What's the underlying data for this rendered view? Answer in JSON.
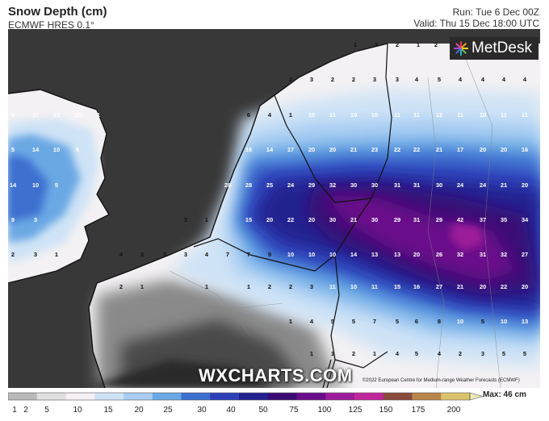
{
  "header": {
    "title": "Snow Depth (cm)",
    "model": "ECMWF HRES 0.1°",
    "run": "Run: Tue 6 Dec 00Z",
    "valid": "Valid: Thu 15 Dec 18:00 UTC"
  },
  "branding": {
    "logo_text": "MetDesk",
    "watermark": "WXCHARTS.COM",
    "copyright": "©2022 European Centre for Medium-range Weather Forecasts (ECMWF)"
  },
  "legend": {
    "max_label": "Max: 46 cm",
    "ticks": [
      "1",
      "2",
      "5",
      "10",
      "15",
      "20",
      "25",
      "30",
      "40",
      "50",
      "75",
      "100",
      "125",
      "150",
      "175",
      "200"
    ],
    "colors": [
      "#b9b9b9",
      "#dfdfdf",
      "#f4f0f4",
      "#cfe3f6",
      "#a9cdf2",
      "#6aa8e4",
      "#3c6fcf",
      "#2d3fb8",
      "#23208f",
      "#3a0a74",
      "#6a0d8a",
      "#9d1c9a",
      "#c0269c",
      "#8a4a3c",
      "#b8864a",
      "#d9c36a"
    ]
  },
  "map": {
    "labels": [
      [
        "1",
        "440",
        "58"
      ],
      [
        "3",
        "466",
        "58"
      ],
      [
        "2",
        "492",
        "58"
      ],
      [
        "1",
        "518",
        "58"
      ],
      [
        "2",
        "540",
        "58"
      ],
      [
        "2",
        "360",
        "101"
      ],
      [
        "3",
        "386",
        "101"
      ],
      [
        "2",
        "412",
        "101"
      ],
      [
        "2",
        "438",
        "101"
      ],
      [
        "3",
        "464",
        "101"
      ],
      [
        "3",
        "492",
        "101"
      ],
      [
        "4",
        "516",
        "101"
      ],
      [
        "5",
        "544",
        "101"
      ],
      [
        "4",
        "570",
        "101"
      ],
      [
        "4",
        "598",
        "101"
      ],
      [
        "4",
        "624",
        "101"
      ],
      [
        "4",
        "650",
        "101"
      ],
      [
        "9",
        "16",
        "145"
      ],
      [
        "11",
        "44",
        "145"
      ],
      [
        "13",
        "70",
        "145"
      ],
      [
        "10",
        "96",
        "145"
      ],
      [
        "1",
        "122",
        "145"
      ],
      [
        "6",
        "308",
        "145"
      ],
      [
        "4",
        "334",
        "145"
      ],
      [
        "1",
        "360",
        "145"
      ],
      [
        "10",
        "386",
        "145"
      ],
      [
        "11",
        "412",
        "145"
      ],
      [
        "10",
        "438",
        "145"
      ],
      [
        "10",
        "464",
        "145"
      ],
      [
        "11",
        "492",
        "145"
      ],
      [
        "11",
        "516",
        "145"
      ],
      [
        "12",
        "544",
        "145"
      ],
      [
        "11",
        "570",
        "145"
      ],
      [
        "10",
        "598",
        "145"
      ],
      [
        "11",
        "624",
        "145"
      ],
      [
        "11",
        "650",
        "145"
      ],
      [
        "5",
        "16",
        "188"
      ],
      [
        "14",
        "44",
        "188"
      ],
      [
        "10",
        "70",
        "188"
      ],
      [
        "6",
        "96",
        "188"
      ],
      [
        "16",
        "308",
        "188"
      ],
      [
        "14",
        "334",
        "188"
      ],
      [
        "17",
        "360",
        "188"
      ],
      [
        "20",
        "386",
        "188"
      ],
      [
        "20",
        "412",
        "188"
      ],
      [
        "21",
        "438",
        "188"
      ],
      [
        "23",
        "464",
        "188"
      ],
      [
        "22",
        "492",
        "188"
      ],
      [
        "22",
        "516",
        "188"
      ],
      [
        "21",
        "544",
        "188"
      ],
      [
        "17",
        "570",
        "188"
      ],
      [
        "20",
        "598",
        "188"
      ],
      [
        "20",
        "624",
        "188"
      ],
      [
        "16",
        "650",
        "188"
      ],
      [
        "14",
        "16",
        "232"
      ],
      [
        "10",
        "44",
        "232"
      ],
      [
        "5",
        "70",
        "232"
      ],
      [
        "28",
        "282",
        "232"
      ],
      [
        "28",
        "308",
        "232"
      ],
      [
        "25",
        "334",
        "232"
      ],
      [
        "24",
        "360",
        "232"
      ],
      [
        "29",
        "386",
        "232"
      ],
      [
        "32",
        "412",
        "232"
      ],
      [
        "30",
        "438",
        "232"
      ],
      [
        "30",
        "464",
        "232"
      ],
      [
        "31",
        "492",
        "232"
      ],
      [
        "31",
        "516",
        "232"
      ],
      [
        "30",
        "544",
        "232"
      ],
      [
        "24",
        "570",
        "232"
      ],
      [
        "24",
        "598",
        "232"
      ],
      [
        "21",
        "624",
        "232"
      ],
      [
        "20",
        "650",
        "232"
      ],
      [
        "9",
        "16",
        "275"
      ],
      [
        "3",
        "44",
        "275"
      ],
      [
        "3",
        "230",
        "275"
      ],
      [
        "1",
        "256",
        "275"
      ],
      [
        "15",
        "308",
        "275"
      ],
      [
        "20",
        "334",
        "275"
      ],
      [
        "22",
        "360",
        "275"
      ],
      [
        "20",
        "386",
        "275"
      ],
      [
        "30",
        "412",
        "275"
      ],
      [
        "21",
        "438",
        "275"
      ],
      [
        "30",
        "464",
        "275"
      ],
      [
        "29",
        "492",
        "275"
      ],
      [
        "31",
        "516",
        "275"
      ],
      [
        "29",
        "544",
        "275"
      ],
      [
        "42",
        "570",
        "275"
      ],
      [
        "37",
        "598",
        "275"
      ],
      [
        "35",
        "624",
        "275"
      ],
      [
        "34",
        "650",
        "275"
      ],
      [
        "2",
        "16",
        "318"
      ],
      [
        "3",
        "44",
        "318"
      ],
      [
        "1",
        "70",
        "318"
      ],
      [
        "4",
        "150",
        "318"
      ],
      [
        "3",
        "176",
        "318"
      ],
      [
        "3",
        "204",
        "318"
      ],
      [
        "3",
        "230",
        "318"
      ],
      [
        "4",
        "256",
        "318"
      ],
      [
        "7",
        "282",
        "318"
      ],
      [
        "7",
        "308",
        "318"
      ],
      [
        "9",
        "334",
        "318"
      ],
      [
        "10",
        "360",
        "318"
      ],
      [
        "10",
        "386",
        "318"
      ],
      [
        "10",
        "412",
        "318"
      ],
      [
        "14",
        "438",
        "318"
      ],
      [
        "13",
        "464",
        "318"
      ],
      [
        "13",
        "492",
        "318"
      ],
      [
        "20",
        "516",
        "318"
      ],
      [
        "26",
        "544",
        "318"
      ],
      [
        "32",
        "570",
        "318"
      ],
      [
        "31",
        "598",
        "318"
      ],
      [
        "32",
        "624",
        "318"
      ],
      [
        "27",
        "650",
        "318"
      ],
      [
        "2",
        "150",
        "358"
      ],
      [
        "1",
        "176",
        "358"
      ],
      [
        "1",
        "256",
        "358"
      ],
      [
        "1",
        "308",
        "358"
      ],
      [
        "2",
        "334",
        "358"
      ],
      [
        "2",
        "360",
        "358"
      ],
      [
        "3",
        "386",
        "358"
      ],
      [
        "11",
        "412",
        "358"
      ],
      [
        "10",
        "438",
        "358"
      ],
      [
        "11",
        "464",
        "358"
      ],
      [
        "15",
        "492",
        "358"
      ],
      [
        "16",
        "516",
        "358"
      ],
      [
        "27",
        "544",
        "358"
      ],
      [
        "21",
        "570",
        "358"
      ],
      [
        "20",
        "598",
        "358"
      ],
      [
        "22",
        "624",
        "358"
      ],
      [
        "20",
        "650",
        "358"
      ],
      [
        "1",
        "360",
        "401"
      ],
      [
        "4",
        "386",
        "401"
      ],
      [
        "5",
        "412",
        "401"
      ],
      [
        "5",
        "438",
        "401"
      ],
      [
        "7",
        "464",
        "401"
      ],
      [
        "5",
        "492",
        "401"
      ],
      [
        "6",
        "516",
        "401"
      ],
      [
        "8",
        "544",
        "401"
      ],
      [
        "10",
        "570",
        "401"
      ],
      [
        "5",
        "598",
        "401"
      ],
      [
        "10",
        "624",
        "401"
      ],
      [
        "13",
        "650",
        "401"
      ],
      [
        "1",
        "386",
        "441"
      ],
      [
        "1",
        "412",
        "441"
      ],
      [
        "2",
        "438",
        "441"
      ],
      [
        "1",
        "464",
        "441"
      ],
      [
        "4",
        "492",
        "441"
      ],
      [
        "5",
        "516",
        "441"
      ],
      [
        "4",
        "544",
        "441"
      ],
      [
        "2",
        "570",
        "441"
      ],
      [
        "3",
        "598",
        "441"
      ],
      [
        "5",
        "624",
        "441"
      ],
      [
        "5",
        "650",
        "441"
      ]
    ]
  }
}
